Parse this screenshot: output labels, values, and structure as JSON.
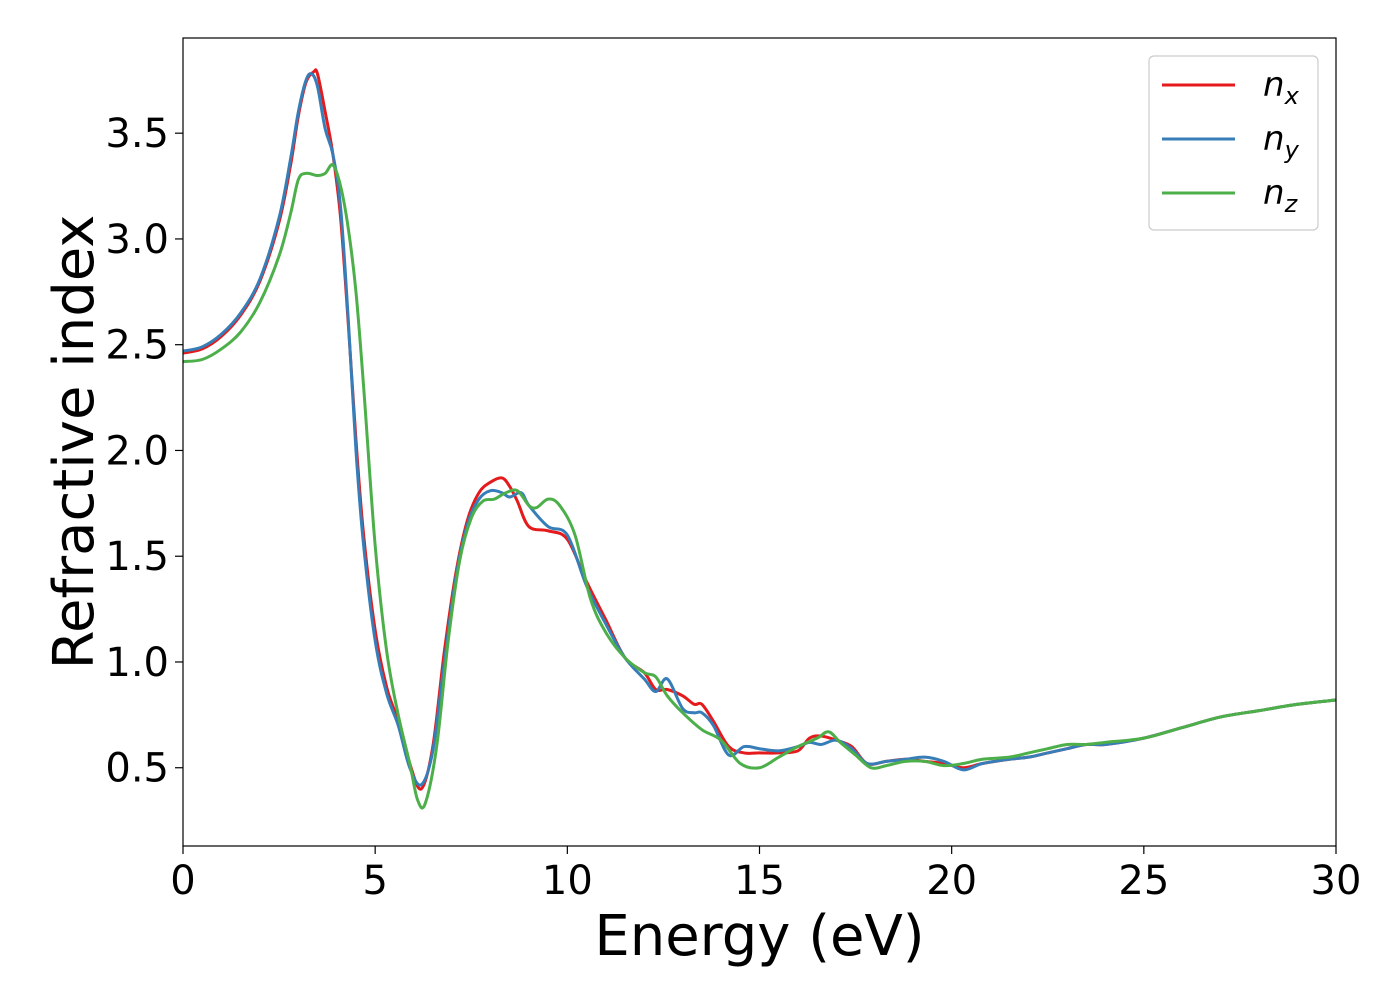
{
  "chart_data": {
    "type": "line",
    "title": "",
    "xlabel": "Energy (eV)",
    "ylabel": "Refractive index",
    "xlim": [
      0,
      30
    ],
    "ylim": [
      0.13,
      3.95
    ],
    "xticks": [
      0,
      5,
      10,
      15,
      20,
      25,
      30
    ],
    "yticks": [
      0.5,
      1.0,
      1.5,
      2.0,
      2.5,
      3.0,
      3.5
    ],
    "xtick_labels": [
      "0",
      "5",
      "10",
      "15",
      "20",
      "25",
      "30"
    ],
    "ytick_labels": [
      "0.5",
      "1.0",
      "1.5",
      "2.0",
      "2.5",
      "3.0",
      "3.5"
    ],
    "grid": false,
    "legend_position": "top-right",
    "series": [
      {
        "name": "n_x",
        "label_base": "n",
        "label_sub": "x",
        "color": "#e41a1c",
        "x": [
          0,
          0.5,
          1,
          1.5,
          2,
          2.5,
          2.8,
          3.0,
          3.2,
          3.4,
          3.5,
          3.7,
          3.9,
          4.1,
          4.3,
          4.5,
          4.7,
          5.0,
          5.3,
          5.6,
          5.9,
          6.2,
          6.5,
          6.8,
          7.1,
          7.4,
          7.7,
          8.0,
          8.3,
          8.5,
          8.7,
          9.0,
          9.5,
          10.0,
          10.5,
          11.0,
          11.5,
          12.0,
          12.3,
          12.6,
          13.0,
          13.3,
          13.5,
          13.8,
          14.2,
          14.6,
          15.0,
          15.5,
          16.0,
          16.3,
          16.6,
          17.0,
          17.4,
          17.8,
          18.3,
          18.8,
          19.3,
          19.8,
          20.3,
          20.8,
          21.5,
          22.0,
          22.5,
          23.0,
          23.5,
          24.0,
          25.0,
          26.0,
          27.0,
          28.0,
          29.0,
          30.0
        ],
        "y": [
          2.46,
          2.48,
          2.54,
          2.64,
          2.8,
          3.08,
          3.35,
          3.58,
          3.74,
          3.79,
          3.78,
          3.6,
          3.4,
          3.1,
          2.6,
          2.05,
          1.6,
          1.15,
          0.88,
          0.72,
          0.52,
          0.4,
          0.6,
          1.05,
          1.42,
          1.67,
          1.8,
          1.85,
          1.87,
          1.83,
          1.76,
          1.64,
          1.62,
          1.58,
          1.38,
          1.2,
          1.02,
          0.95,
          0.87,
          0.87,
          0.84,
          0.8,
          0.8,
          0.72,
          0.6,
          0.57,
          0.57,
          0.57,
          0.58,
          0.64,
          0.65,
          0.63,
          0.6,
          0.52,
          0.53,
          0.54,
          0.53,
          0.52,
          0.5,
          0.52,
          0.54,
          0.55,
          0.57,
          0.59,
          0.61,
          0.61,
          0.64,
          0.69,
          0.74,
          0.77,
          0.8,
          0.82
        ]
      },
      {
        "name": "n_y",
        "label_base": "n",
        "label_sub": "y",
        "color": "#377eb8",
        "x": [
          0,
          0.5,
          1,
          1.5,
          2,
          2.5,
          2.8,
          3.0,
          3.2,
          3.35,
          3.5,
          3.7,
          3.9,
          4.1,
          4.3,
          4.5,
          4.7,
          5.0,
          5.3,
          5.6,
          5.9,
          6.2,
          6.5,
          6.8,
          7.1,
          7.4,
          7.7,
          8.0,
          8.3,
          8.5,
          8.8,
          9.0,
          9.5,
          10.0,
          10.5,
          11.0,
          11.5,
          12.0,
          12.3,
          12.6,
          13.0,
          13.3,
          13.5,
          13.8,
          14.2,
          14.6,
          15.0,
          15.5,
          16.0,
          16.3,
          16.6,
          17.0,
          17.4,
          17.8,
          18.3,
          18.8,
          19.3,
          19.8,
          20.3,
          20.8,
          21.5,
          22.0,
          22.5,
          23.0,
          23.5,
          24.0,
          25.0,
          26.0,
          27.0,
          28.0,
          29.0,
          30.0
        ],
        "y": [
          2.47,
          2.49,
          2.55,
          2.65,
          2.81,
          3.1,
          3.38,
          3.6,
          3.75,
          3.78,
          3.72,
          3.52,
          3.4,
          3.15,
          2.62,
          2.0,
          1.55,
          1.1,
          0.85,
          0.7,
          0.5,
          0.42,
          0.58,
          1.0,
          1.4,
          1.65,
          1.77,
          1.81,
          1.8,
          1.78,
          1.8,
          1.74,
          1.64,
          1.6,
          1.36,
          1.18,
          1.02,
          0.92,
          0.86,
          0.92,
          0.78,
          0.76,
          0.76,
          0.7,
          0.56,
          0.6,
          0.59,
          0.58,
          0.6,
          0.62,
          0.61,
          0.63,
          0.59,
          0.52,
          0.53,
          0.54,
          0.55,
          0.53,
          0.49,
          0.52,
          0.54,
          0.55,
          0.57,
          0.59,
          0.61,
          0.61,
          0.64,
          0.69,
          0.74,
          0.77,
          0.8,
          0.82
        ]
      },
      {
        "name": "n_z",
        "label_base": "n",
        "label_sub": "z",
        "color": "#4daf4a",
        "x": [
          0,
          0.5,
          1,
          1.5,
          2,
          2.5,
          2.8,
          3.0,
          3.2,
          3.5,
          3.7,
          3.9,
          4.1,
          4.3,
          4.5,
          4.7,
          5.0,
          5.3,
          5.6,
          5.9,
          6.1,
          6.3,
          6.6,
          6.9,
          7.2,
          7.5,
          7.8,
          8.1,
          8.4,
          8.7,
          9.0,
          9.2,
          9.5,
          9.8,
          10.2,
          10.6,
          11.0,
          11.5,
          12.0,
          12.3,
          12.6,
          13.0,
          13.5,
          14.0,
          14.5,
          15.0,
          15.5,
          16.0,
          16.5,
          16.8,
          17.1,
          17.5,
          17.9,
          18.3,
          18.8,
          19.3,
          19.8,
          20.3,
          20.8,
          21.5,
          22.0,
          22.5,
          23.0,
          23.5,
          24.0,
          25.0,
          26.0,
          27.0,
          28.0,
          29.0,
          30.0
        ],
        "y": [
          2.42,
          2.43,
          2.48,
          2.56,
          2.7,
          2.92,
          3.12,
          3.28,
          3.31,
          3.3,
          3.31,
          3.35,
          3.25,
          3.05,
          2.75,
          2.3,
          1.55,
          1.05,
          0.75,
          0.52,
          0.35,
          0.33,
          0.6,
          1.1,
          1.48,
          1.68,
          1.76,
          1.77,
          1.8,
          1.81,
          1.74,
          1.73,
          1.77,
          1.74,
          1.6,
          1.3,
          1.14,
          1.02,
          0.95,
          0.93,
          0.84,
          0.76,
          0.68,
          0.63,
          0.52,
          0.5,
          0.55,
          0.6,
          0.64,
          0.67,
          0.62,
          0.56,
          0.5,
          0.51,
          0.53,
          0.53,
          0.51,
          0.52,
          0.54,
          0.55,
          0.57,
          0.59,
          0.61,
          0.61,
          0.62,
          0.64,
          0.69,
          0.74,
          0.77,
          0.8,
          0.82
        ]
      }
    ]
  }
}
